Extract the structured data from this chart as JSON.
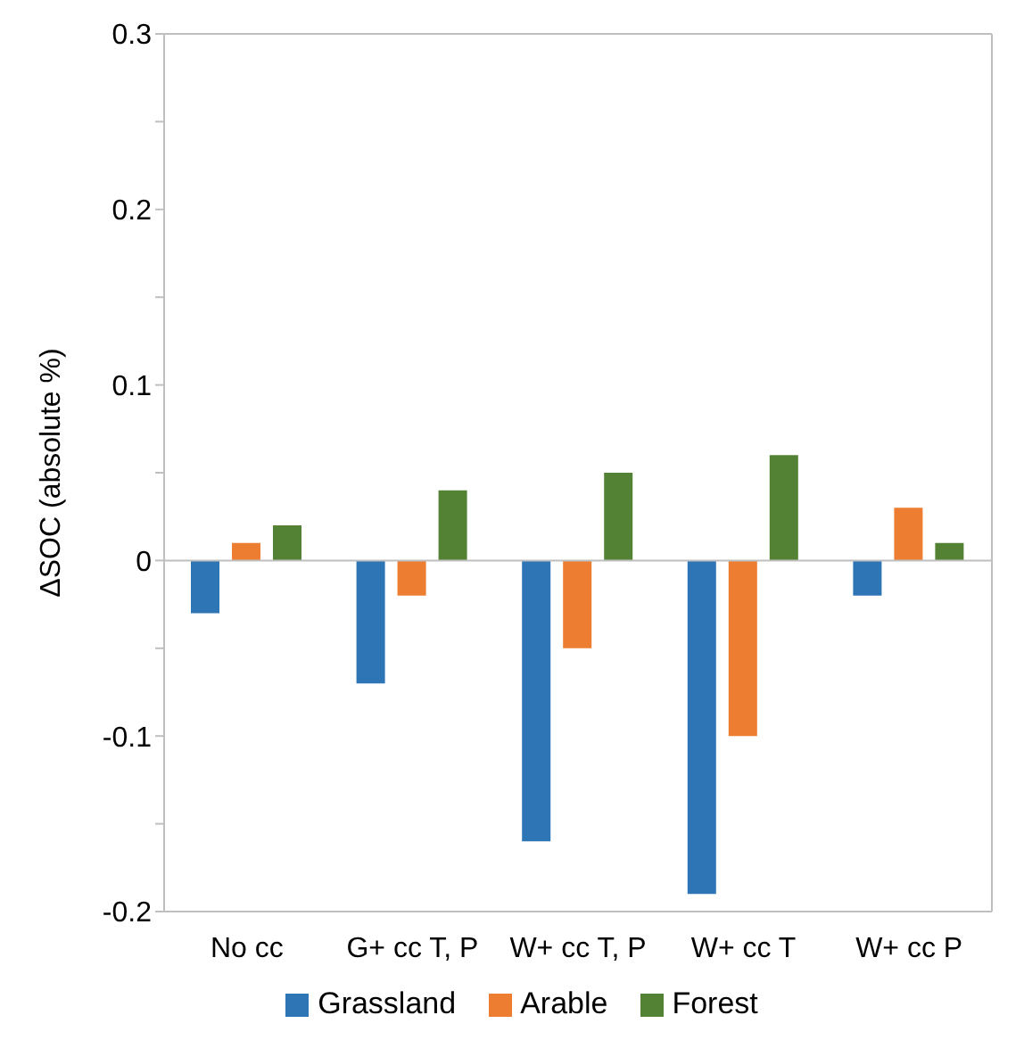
{
  "chart_data": {
    "type": "bar",
    "ylabel": "ΔSOC (absolute %)",
    "categories": [
      "No cc",
      "G+ cc T, P",
      "W+ cc T, P",
      "W+ cc T",
      "W+ cc P"
    ],
    "series": [
      {
        "name": "Grassland",
        "color": "#2e75b6",
        "values": [
          -0.03,
          -0.07,
          -0.16,
          -0.19,
          -0.02
        ]
      },
      {
        "name": "Arable",
        "color": "#ed7d31",
        "values": [
          0.01,
          -0.02,
          -0.05,
          -0.1,
          0.03
        ]
      },
      {
        "name": "Forest",
        "color": "#548235",
        "values": [
          0.02,
          0.04,
          0.05,
          0.06,
          0.01
        ]
      }
    ],
    "ylim": [
      -0.2,
      0.3
    ],
    "yticks": [
      -0.2,
      {
        "value": -0.15,
        "label": null
      },
      -0.1,
      {
        "value": -0.05,
        "label": null
      },
      0,
      {
        "value": 0.05,
        "label": null
      },
      0.1,
      {
        "value": 0.15,
        "label": null
      },
      0.2,
      {
        "value": 0.25,
        "label": null
      },
      0.3
    ],
    "ref_lines": [
      {
        "axis": "y",
        "value": 0,
        "color": "#bfbfbf"
      }
    ],
    "grid": false,
    "legend": "bottom"
  }
}
